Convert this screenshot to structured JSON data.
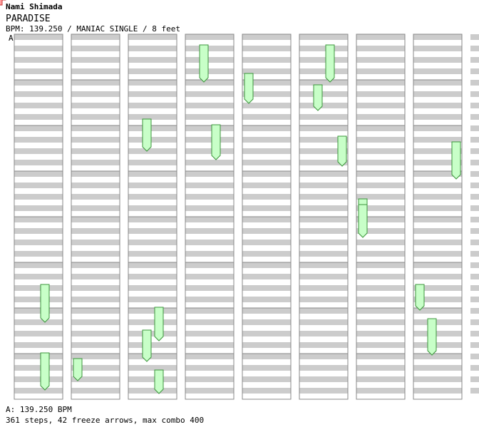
{
  "header": {
    "artist": "Nami Shimada",
    "title": "PARADISE",
    "info": "BPM: 139.250 / MANIAC SINGLE / 8 feet",
    "section_marker": "A"
  },
  "footer": {
    "bpm_line": "A: 139.250 BPM",
    "stats_line": "361 steps, 42 freeze arrows, max combo 400"
  },
  "chart": {
    "columns": 9,
    "measures_per_column": 8,
    "lanes": [
      "left",
      "down",
      "up",
      "right"
    ],
    "colors": {
      "stripe": "#cccccc",
      "quarter_note": "#ff9f9f",
      "quarter_stroke": "#c83232",
      "eighth_note": "#8fc6ff",
      "eighth_stroke": "#2d6fb6",
      "sixteenth_note": "#ffc8ff",
      "sixteenth_stroke": "#b050b0",
      "freeze_fill": "#c8ffc8",
      "freeze_stroke": "#3c963c"
    },
    "icons": {
      "left": "arrow-left-icon",
      "down": "arrow-down-icon",
      "up": "arrow-up-icon",
      "right": "arrow-right-icon"
    }
  }
}
